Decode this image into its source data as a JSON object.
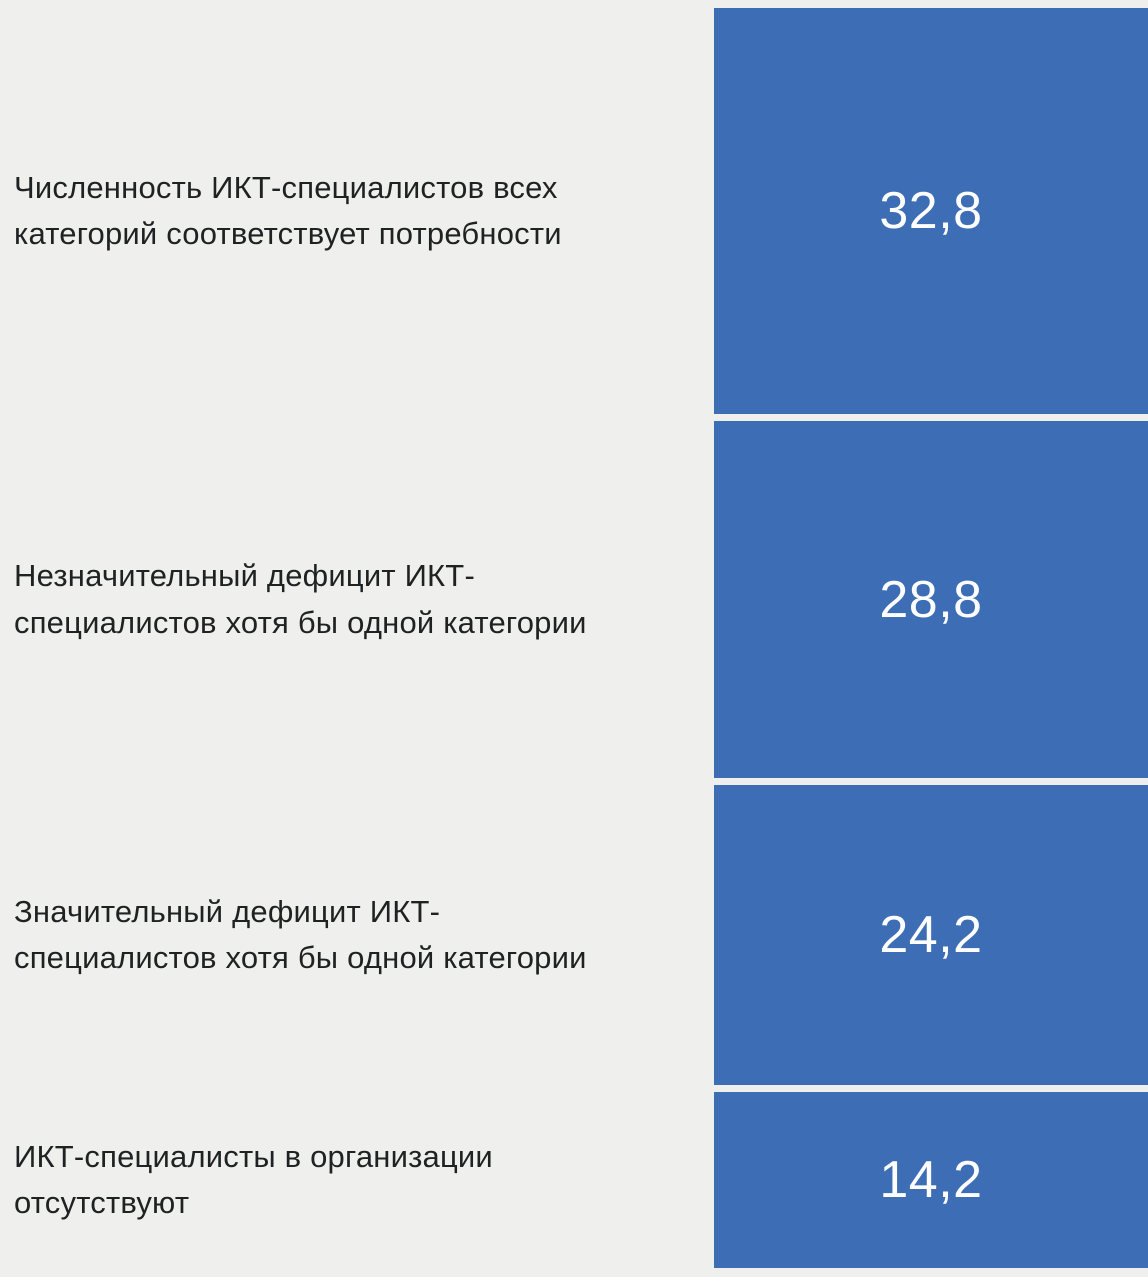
{
  "chart_data": {
    "type": "bar",
    "orientation": "horizontal-rows-stacked-vertical",
    "unit": "percent",
    "title": "",
    "xlabel": "",
    "ylabel": "",
    "legend": null,
    "grid": false,
    "bar_color": "#3d6eb5",
    "background_color": "#efefed",
    "categories": [
      "Численность ИКТ-специалистов всех категорий соответствует потребности",
      "Незначительный дефицит ИКТ-специалистов хотя бы одной категории",
      "Значительный дефицит ИКТ-специалистов хотя бы одной категории",
      "ИКТ-специалисты в организации отсутствуют"
    ],
    "values": [
      32.8,
      28.8,
      24.2,
      14.2
    ],
    "rows": [
      {
        "label": "Численность ИКТ-специалистов всех категорий соответствует потребности",
        "value": 32.8,
        "value_label": "32,8"
      },
      {
        "label": "Незначительный дефицит ИКТ-специалистов хотя бы одной категории",
        "value": 28.8,
        "value_label": "28,8"
      },
      {
        "label": "Значительный дефицит ИКТ-специалистов хотя бы одной категории",
        "value": 24.2,
        "value_label": "24,2"
      },
      {
        "label": "ИКТ-специалисты в организации отсутствуют",
        "value": 14.2,
        "value_label": "14,2"
      }
    ]
  }
}
